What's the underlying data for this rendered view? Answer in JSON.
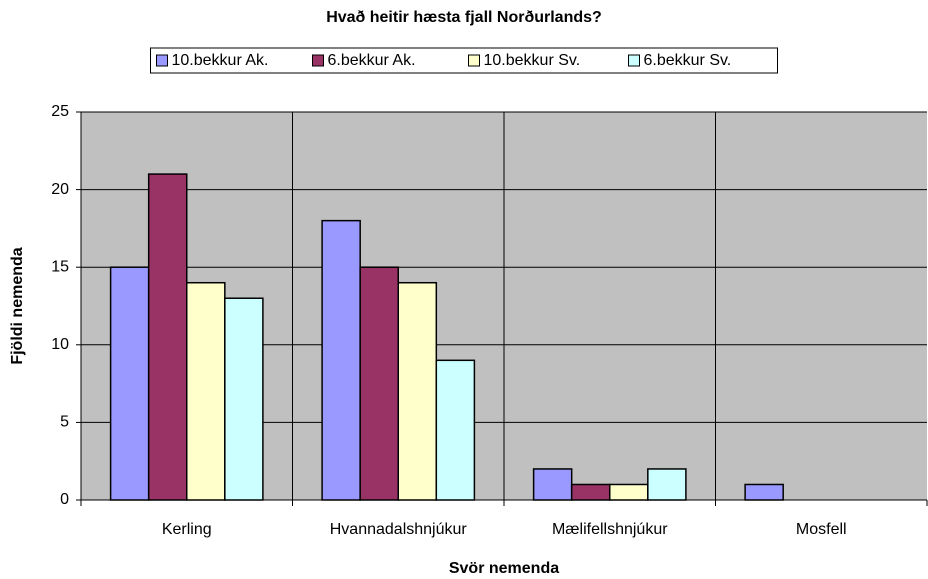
{
  "chart_data": {
    "type": "bar",
    "title": "Hvað heitir hæsta fjall Norðurlands?",
    "x_label": "Svör nemenda",
    "y_label": "Fjöldi nemenda",
    "categories": [
      "Kerling",
      "Hvannadalshnjúkur",
      "Mælifellshnjúkur",
      "Mosfell"
    ],
    "series": [
      {
        "name": "10.bekkur Ak.",
        "color": "#9999ff",
        "values": [
          15,
          18,
          2,
          1
        ]
      },
      {
        "name": "6.bekkur Ak.",
        "color": "#993366",
        "values": [
          21,
          15,
          1,
          0
        ]
      },
      {
        "name": "10.bekkur Sv.",
        "color": "#ffffcc",
        "values": [
          14,
          14,
          1,
          0
        ]
      },
      {
        "name": "6.bekkur Sv.",
        "color": "#ccffff",
        "values": [
          13,
          9,
          2,
          0
        ]
      }
    ],
    "ylim": [
      0,
      25
    ],
    "yticks": [
      0,
      5,
      10,
      15,
      20,
      25
    ],
    "grid": true,
    "legend": "top"
  }
}
